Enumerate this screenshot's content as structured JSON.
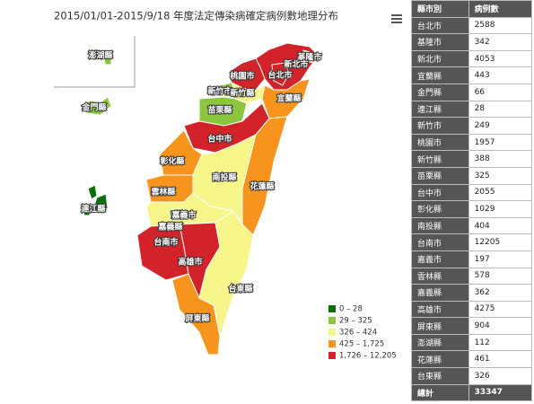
{
  "title": "2015/01/01-2015/9/18 年度法定傳染病確定病例數地理分布",
  "legend": [
    {
      "min": 0,
      "max": 28,
      "label": "0 – 28",
      "color": "#0b6e0b"
    },
    {
      "min": 29,
      "max": 325,
      "label": "29 – 325",
      "color": "#8cc63f"
    },
    {
      "min": 326,
      "max": 424,
      "label": "326 – 424",
      "color": "#f6f58a"
    },
    {
      "min": 425,
      "max": 1725,
      "label": "425 – 1,725",
      "color": "#f7941d"
    },
    {
      "min": 1726,
      "max": 12205,
      "label": "1,726 – 12,205",
      "color": "#d2232a"
    }
  ],
  "table": {
    "header": [
      "縣市別",
      "病例數"
    ],
    "rows": [
      [
        "台北市",
        2588
      ],
      [
        "基隆市",
        342
      ],
      [
        "新北市",
        4053
      ],
      [
        "宜蘭縣",
        443
      ],
      [
        "金門縣",
        66
      ],
      [
        "連江縣",
        28
      ],
      [
        "新竹市",
        249
      ],
      [
        "桃園市",
        1957
      ],
      [
        "新竹縣",
        388
      ],
      [
        "苗栗縣",
        325
      ],
      [
        "台中市",
        2055
      ],
      [
        "彰化縣",
        1029
      ],
      [
        "南投縣",
        404
      ],
      [
        "台南市",
        12205
      ],
      [
        "嘉義市",
        197
      ],
      [
        "雲林縣",
        578
      ],
      [
        "嘉義縣",
        362
      ],
      [
        "高雄市",
        4275
      ],
      [
        "屏東縣",
        904
      ],
      [
        "澎湖縣",
        112
      ],
      [
        "花蓮縣",
        461
      ],
      [
        "台東縣",
        326
      ]
    ],
    "total": [
      "總計",
      33347
    ]
  }
}
